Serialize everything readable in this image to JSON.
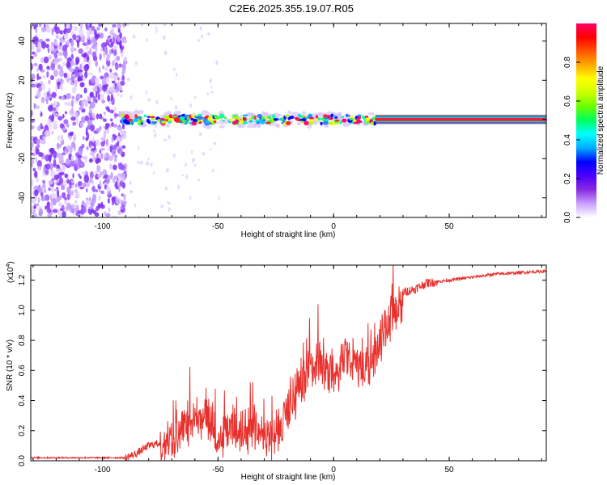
{
  "title": "C2E6.2025.355.19.07.R05",
  "chart_data": [
    {
      "type": "heatmap",
      "xlabel": "Height of straight line (km)",
      "ylabel": "Frequency (Hz)",
      "xlim": [
        -131,
        92
      ],
      "ylim": [
        -50,
        49
      ],
      "x_ticks": [
        -100,
        -50,
        0,
        50
      ],
      "x_tick_labels": [
        "-100",
        "-50",
        "0",
        "50"
      ],
      "y_ticks": [
        -40,
        -20,
        0,
        20,
        40
      ],
      "y_tick_labels": [
        "-40",
        "-20",
        "0",
        "20",
        "40"
      ],
      "noise_region_x": [
        -131,
        -90
      ],
      "signal_center_hz": 0,
      "colorbar": {
        "label": "Normalized spectral amplitude",
        "range": [
          0,
          1
        ],
        "ticks": [
          0.0,
          0.2,
          0.4,
          0.6,
          0.8
        ],
        "tick_labels": [
          "0.0",
          "0.2",
          "0.4",
          "0.6",
          "0.8"
        ],
        "colors": [
          "#ffffff",
          "#c9a0ff",
          "#8a2be2",
          "#4b00ff",
          "#0000ff",
          "#00aaff",
          "#00ffff",
          "#00ff60",
          "#66ff00",
          "#ccff00",
          "#ffff00",
          "#ffaa00",
          "#ff5500",
          "#ff0000",
          "#ff0066"
        ]
      }
    },
    {
      "type": "line",
      "xlabel": "Height of straight line (km)",
      "ylabel": "SNR (10 * v/v)",
      "y_scale_label": "(x10",
      "y_scale_exp": "4",
      "y_scale_close": ")",
      "xlim": [
        -131,
        92
      ],
      "ylim": [
        0,
        1.3
      ],
      "x_ticks": [
        -100,
        -50,
        0,
        50
      ],
      "x_tick_labels": [
        "-100",
        "-50",
        "0",
        "50"
      ],
      "y_ticks": [
        0.0,
        0.2,
        0.4,
        0.6,
        0.8,
        1.0,
        1.2
      ],
      "y_tick_labels": [
        "0.0",
        "0.2",
        "0.4",
        "0.6",
        "0.8",
        "1.0",
        "1.2"
      ],
      "series": [
        {
          "name": "SNR",
          "color": "#e8302c",
          "x": [
            -131,
            -120,
            -110,
            -100,
            -90,
            -85,
            -80,
            -75,
            -70,
            -65,
            -60,
            -55,
            -50,
            -45,
            -40,
            -35,
            -30,
            -25,
            -20,
            -15,
            -10,
            -5,
            0,
            5,
            10,
            15,
            20,
            25,
            30,
            35,
            40,
            50,
            60,
            70,
            80,
            92
          ],
          "y": [
            0.02,
            0.02,
            0.02,
            0.02,
            0.02,
            0.05,
            0.1,
            0.12,
            0.2,
            0.3,
            0.35,
            0.4,
            0.22,
            0.3,
            0.26,
            0.3,
            0.25,
            0.22,
            0.4,
            0.55,
            0.7,
            0.72,
            0.6,
            0.78,
            0.72,
            0.7,
            0.85,
            1.05,
            1.12,
            1.14,
            1.18,
            1.2,
            1.22,
            1.24,
            1.25,
            1.26
          ]
        }
      ]
    }
  ]
}
